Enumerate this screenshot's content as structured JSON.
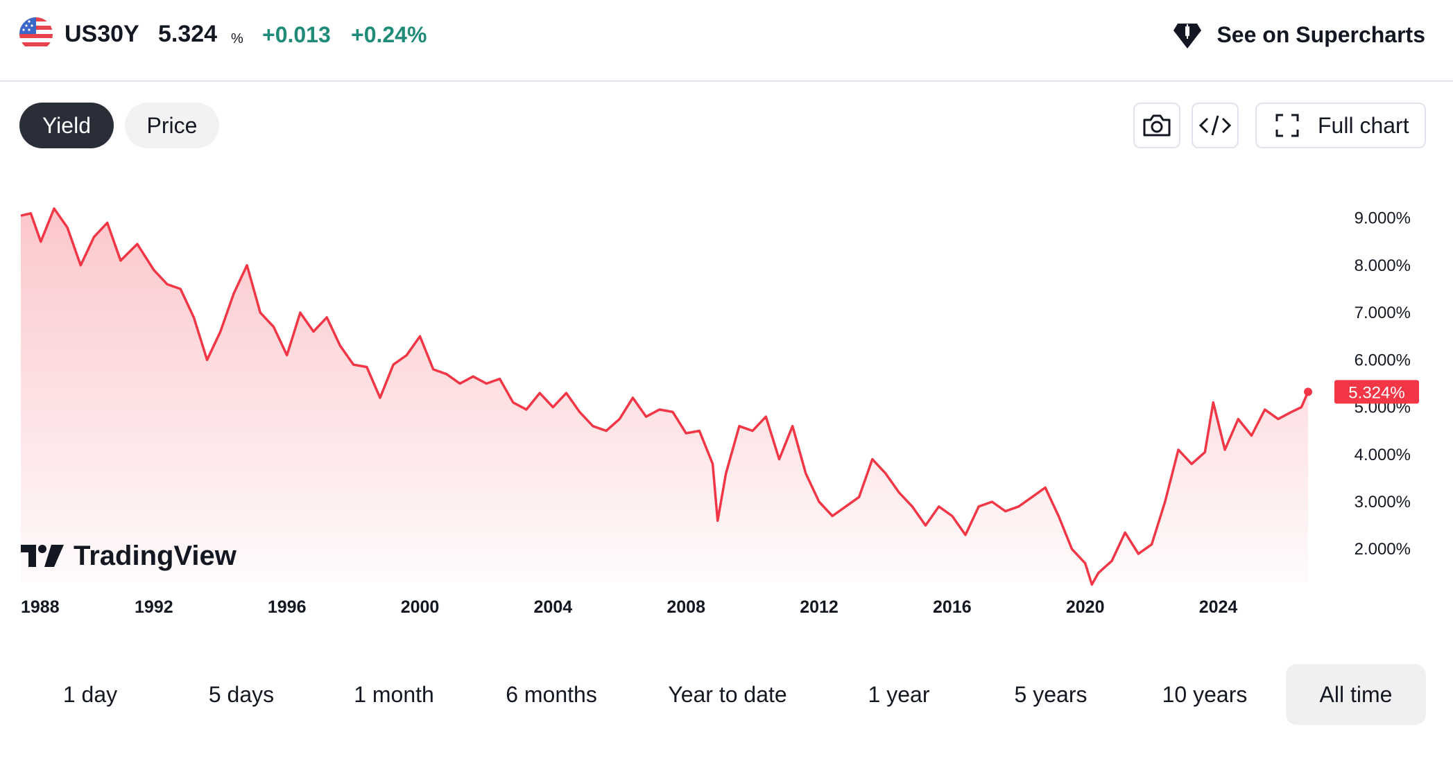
{
  "header": {
    "symbol": "US30Y",
    "last": "5.324",
    "unit": "%",
    "change": "+0.013",
    "change_pct": "+0.24%",
    "supercharts_label": "See on Supercharts"
  },
  "toggle": {
    "yield_label": "Yield",
    "price_label": "Price",
    "active": "Yield"
  },
  "tools": {
    "full_chart_label": "Full chart",
    "snapshot_icon": "camera-icon",
    "embed_icon": "code-icon",
    "fullscreen_icon": "fullscreen-icon"
  },
  "watermark": {
    "text": "TradingView"
  },
  "ranges": [
    "1 day",
    "5 days",
    "1 month",
    "6 months",
    "Year to date",
    "1 year",
    "5 years",
    "10 years",
    "All time"
  ],
  "selected_range": "All time",
  "colors": {
    "line": "#f23645",
    "positive": "#1f8b78",
    "active_pill": "#2a2e39"
  },
  "chart_data": {
    "type": "area",
    "series": [
      {
        "x": [
          1988.0,
          1988.3,
          1988.6,
          1989.0,
          1989.4,
          1989.8,
          1990.2,
          1990.6,
          1991.0,
          1991.5,
          1992.0,
          1992.4,
          1992.8,
          1993.2,
          1993.6,
          1994.0,
          1994.4,
          1994.8,
          1995.2,
          1995.6,
          1996.0,
          1996.4,
          1996.8,
          1997.2,
          1997.6,
          1998.0,
          1998.4,
          1998.8,
          1999.2,
          1999.6,
          2000.0,
          2000.4,
          2000.8,
          2001.2,
          2001.6,
          2002.0,
          2002.4,
          2002.8,
          2003.2,
          2003.6,
          2004.0,
          2004.4,
          2004.8,
          2005.2,
          2005.6,
          2006.0,
          2006.4,
          2006.8,
          2007.2,
          2007.6,
          2008.0,
          2008.4,
          2008.8,
          2008.95,
          2009.2,
          2009.6,
          2010.0,
          2010.4,
          2010.8,
          2011.2,
          2011.6,
          2012.0,
          2012.4,
          2012.8,
          2013.2,
          2013.6,
          2014.0,
          2014.4,
          2014.8,
          2015.2,
          2015.6,
          2016.0,
          2016.4,
          2016.8,
          2017.2,
          2017.6,
          2018.0,
          2018.4,
          2018.8,
          2019.2,
          2019.6,
          2020.0,
          2020.2,
          2020.4,
          2020.8,
          2021.2,
          2021.6,
          2022.0,
          2022.4,
          2022.8,
          2023.2,
          2023.6,
          2023.85,
          2024.2,
          2024.6,
          2025.0,
          2025.4,
          2025.8,
          2026.2,
          2026.5,
          2026.7
        ],
        "y": [
          9.05,
          9.1,
          8.5,
          9.2,
          8.8,
          8.0,
          8.6,
          8.9,
          8.1,
          8.45,
          7.9,
          7.6,
          7.5,
          6.9,
          6.0,
          6.6,
          7.4,
          8.0,
          7.0,
          6.7,
          6.1,
          7.0,
          6.6,
          6.9,
          6.3,
          5.9,
          5.85,
          5.2,
          5.9,
          6.1,
          6.5,
          5.8,
          5.7,
          5.5,
          5.65,
          5.5,
          5.6,
          5.1,
          4.95,
          5.3,
          5.0,
          5.3,
          4.9,
          4.6,
          4.5,
          4.75,
          5.2,
          4.8,
          4.95,
          4.9,
          4.45,
          4.5,
          3.8,
          2.6,
          3.6,
          4.6,
          4.5,
          4.8,
          3.9,
          4.6,
          3.6,
          3.0,
          2.7,
          2.9,
          3.1,
          3.9,
          3.6,
          3.2,
          2.9,
          2.5,
          2.9,
          2.7,
          2.3,
          2.9,
          3.0,
          2.8,
          2.9,
          3.1,
          3.3,
          2.7,
          2.0,
          1.7,
          1.25,
          1.5,
          1.75,
          2.35,
          1.9,
          2.1,
          3.0,
          4.1,
          3.8,
          4.05,
          5.1,
          4.1,
          4.75,
          4.4,
          4.95,
          4.75,
          4.9,
          5.0,
          5.324
        ]
      }
    ],
    "x_ticks": [
      "1988",
      "1992",
      "1996",
      "2000",
      "2004",
      "2008",
      "2012",
      "2016",
      "2020",
      "2024"
    ],
    "y_ticks": [
      "9.000%",
      "8.000%",
      "7.000%",
      "6.000%",
      "5.000%",
      "4.000%",
      "3.000%",
      "2.000%"
    ],
    "last_label": "5.324%",
    "xlim": [
      1988.0,
      2027.2
    ],
    "ylim": [
      1.3,
      9.8
    ],
    "grid": false
  }
}
